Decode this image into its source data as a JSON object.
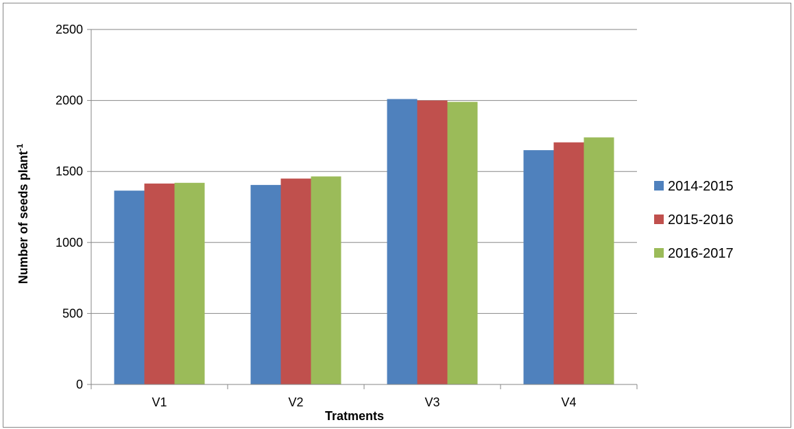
{
  "chart_data": {
    "type": "bar",
    "categories": [
      "V1",
      "V2",
      "V3",
      "V4"
    ],
    "series": [
      {
        "name": "2014-2015",
        "color": "#4F81BD",
        "values": [
          1365,
          1405,
          2010,
          1650
        ]
      },
      {
        "name": "2015-2016",
        "color": "#C0504D",
        "values": [
          1415,
          1450,
          2000,
          1705
        ]
      },
      {
        "name": "2016-2017",
        "color": "#9BBB59",
        "values": [
          1420,
          1465,
          1990,
          1740
        ]
      }
    ],
    "xlabel": "Tratments",
    "ylabel_main": "Number of seeds plant",
    "ylabel_sup": "-1",
    "ylim": [
      0,
      2500
    ],
    "yticks": [
      0,
      500,
      1000,
      1500,
      2000,
      2500
    ],
    "grid": true,
    "legend_position": "right"
  }
}
